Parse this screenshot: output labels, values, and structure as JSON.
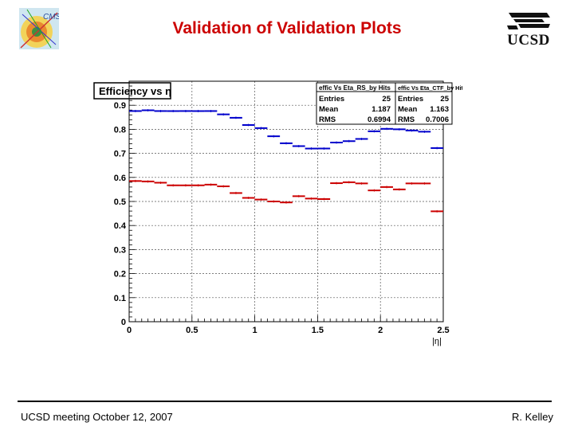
{
  "slide": {
    "title": "Validation of Validation Plots",
    "footer_left": "UCSD meeting October 12, 2007",
    "footer_right": "R. Kelley",
    "logo_right_text": "UCSD",
    "logo_left_text": "CMS"
  },
  "colors": {
    "title": "#cc0000",
    "series_rs": "#0000cc",
    "series_ctf": "#cc0000"
  },
  "chart_data": {
    "type": "scatter",
    "title": "Efficiency vs η",
    "xlabel": "|η|",
    "ylabel": "",
    "xlim": [
      0,
      2.5
    ],
    "ylim": [
      0,
      1.0
    ],
    "grid": true,
    "x_ticks": [
      0,
      0.5,
      1,
      1.5,
      2,
      2.5
    ],
    "x_tick_labels": [
      "0",
      "0.5",
      "1",
      "1.5",
      "2",
      "2.5"
    ],
    "y_ticks": [
      0,
      0.1,
      0.2,
      0.3,
      0.4,
      0.5,
      0.6,
      0.7,
      0.8,
      0.9
    ],
    "y_tick_labels": [
      "0",
      "0.1",
      "0.2",
      "0.3",
      "0.4",
      "0.5",
      "0.6",
      "0.7",
      "0.8",
      "0.9"
    ],
    "bin_width": 0.1,
    "x": [
      0.05,
      0.15,
      0.25,
      0.35,
      0.45,
      0.55,
      0.65,
      0.75,
      0.85,
      0.95,
      1.05,
      1.15,
      1.25,
      1.35,
      1.45,
      1.55,
      1.65,
      1.75,
      1.85,
      1.95,
      2.05,
      2.15,
      2.25,
      2.35,
      2.45
    ],
    "series": [
      {
        "name": "effic Vs Eta_RS_by Hits",
        "color": "#0000cc",
        "values": [
          0.876,
          0.879,
          0.876,
          0.876,
          0.876,
          0.876,
          0.876,
          0.862,
          0.848,
          0.818,
          0.805,
          0.771,
          0.742,
          0.73,
          0.72,
          0.72,
          0.745,
          0.751,
          0.76,
          0.792,
          0.802,
          0.8,
          0.795,
          0.79,
          0.722
        ],
        "stats": {
          "entries": "25",
          "mean": "1.187",
          "rms": "0.6994"
        }
      },
      {
        "name": "effic Vs Eta_CTF_by Hits",
        "color": "#cc0000",
        "values": [
          0.585,
          0.583,
          0.578,
          0.567,
          0.567,
          0.567,
          0.57,
          0.563,
          0.535,
          0.515,
          0.508,
          0.5,
          0.496,
          0.522,
          0.512,
          0.51,
          0.576,
          0.58,
          0.575,
          0.546,
          0.56,
          0.55,
          0.575,
          0.575,
          0.459
        ],
        "stats": {
          "entries": "25",
          "mean": "1.163",
          "rms": "0.7006"
        }
      }
    ],
    "stat_labels": {
      "entries": "Entries",
      "mean": "Mean",
      "rms": "RMS"
    }
  }
}
